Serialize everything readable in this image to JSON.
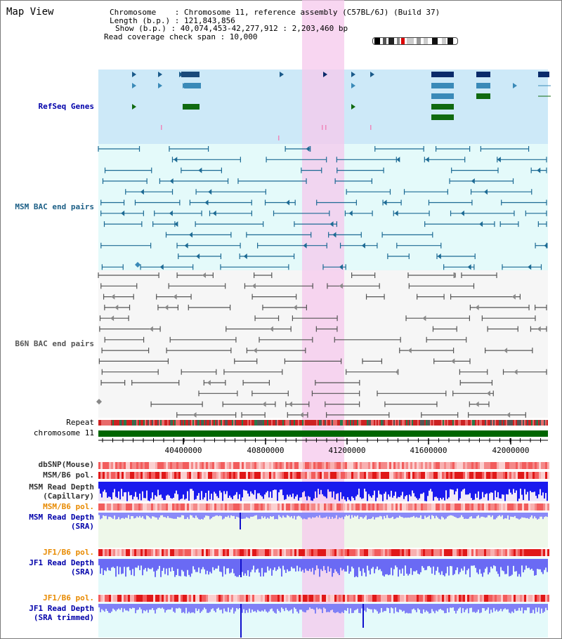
{
  "view_title": "Map View",
  "info": {
    "line1": "Chromosome    : Chromosome 11, reference assembly (C57BL/6J) (Build 37)",
    "line2": "Length (b.p.) : 121,843,856",
    "line3": "Show (b.p.) : 40,074,453-42,277,912 : 2,203,460 bp",
    "line4": "Read coverage check span : 10,000"
  },
  "tracks": {
    "refseq": "RefSeq Genes",
    "msm_bac": "MSM BAC end pairs",
    "b6n_bac": "B6N BAC end pairs",
    "repeat": "Repeat",
    "chromosome": "chromosome 11",
    "dbsnp": "dbSNP(Mouse)",
    "msm_b6_pol": "MSM/B6 pol.",
    "msm_depth_cap_1": "MSM Read Depth",
    "msm_depth_cap_2": "(Capillary)",
    "msm_b6_pol2": "MSM/B6 pol.",
    "msm_depth_sra_1": "MSM Read Depth",
    "msm_depth_sra_2": "(SRA)",
    "jf1_b6_pol": "JF1/B6 pol.",
    "jf1_depth_1": "JF1 Read Depth",
    "jf1_depth_2": "(SRA)",
    "jf1_b6_pol2": "JF1/B6 pol.",
    "jf1_depth_trim_1": "JF1 Read Depth",
    "jf1_depth_trim_2": "(SRA trimmed)"
  },
  "axis_ticks": [
    "40400000",
    "40800000",
    "41200000",
    "41600000",
    "42000000"
  ],
  "colors": {
    "refseq_bg": "#cce8f8",
    "bac_bg": "#e6fafa",
    "b6n_bg": "#f5f5f5",
    "highlight": "#f6d3ee",
    "chromosome": "#006600",
    "depth_dark": "#1a1aee",
    "depth_light": "#8888ff"
  }
}
